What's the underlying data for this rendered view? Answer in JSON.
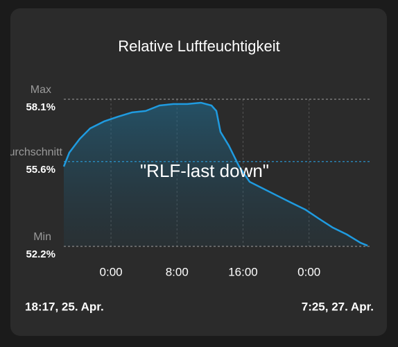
{
  "chart_data": {
    "type": "line",
    "title": "Relative Luftfeuchtigkeit",
    "annotation": "\"RLF-last down\"",
    "start_label": "18:17,  25. Apr.",
    "end_label": "7:25,  27. Apr.",
    "reference_lines": [
      {
        "name": "Max",
        "value": 58.1,
        "label": "58.1%",
        "color": "#8a8a8a"
      },
      {
        "name": "Durchschnitt",
        "value": 55.6,
        "label": "55.6%",
        "color": "#2a9fe0"
      },
      {
        "name": "Min",
        "value": 52.2,
        "label": "52.2%",
        "color": "#8a8a8a"
      }
    ],
    "xlim": [
      -5.72,
      31.42
    ],
    "xticks": [
      {
        "value": 0,
        "label": "0:00"
      },
      {
        "value": 8,
        "label": "8:00"
      },
      {
        "value": 16,
        "label": "16:00"
      },
      {
        "value": 24,
        "label": "0:00"
      }
    ],
    "ylim": [
      52.2,
      58.1
    ],
    "grid": true,
    "series": [
      {
        "name": "RLF",
        "color": "#1f9be0",
        "x": [
          -5.72,
          -5.05,
          -3.79,
          -2.53,
          -0.85,
          0.83,
          2.52,
          4.2,
          5.88,
          7.56,
          9.24,
          10.92,
          12.18,
          12.77,
          13.27,
          14.28,
          15.54,
          16.8,
          18.48,
          20.16,
          21.85,
          23.53,
          25.2,
          26.89,
          28.57,
          30.25,
          31.09
        ],
        "values": [
          55.4,
          55.96,
          56.51,
          56.93,
          57.21,
          57.4,
          57.57,
          57.63,
          57.85,
          57.91,
          57.91,
          57.96,
          57.85,
          57.63,
          56.79,
          56.24,
          55.4,
          54.79,
          54.51,
          54.23,
          53.95,
          53.68,
          53.31,
          52.95,
          52.68,
          52.34,
          52.23
        ]
      }
    ]
  }
}
